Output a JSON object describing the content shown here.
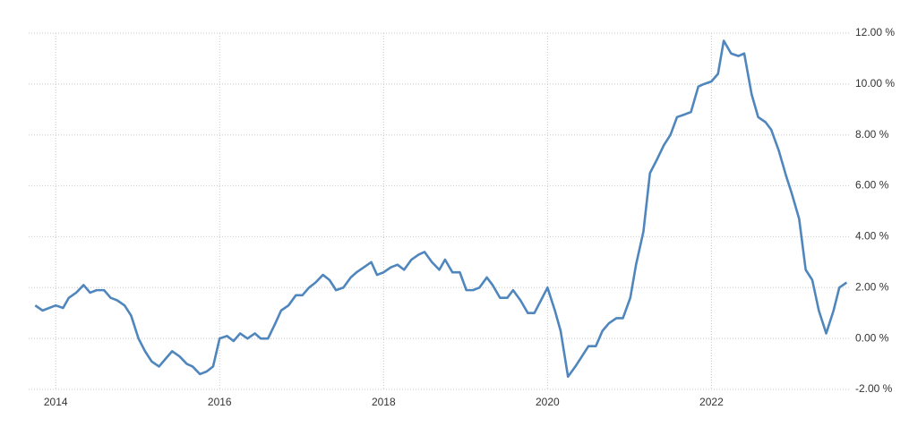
{
  "chart_data": {
    "type": "line",
    "x": [
      2013.75,
      2013.84,
      2014.0,
      2014.09,
      2014.16,
      2014.25,
      2014.34,
      2014.42,
      2014.5,
      2014.59,
      2014.67,
      2014.75,
      2014.84,
      2014.92,
      2015.01,
      2015.09,
      2015.17,
      2015.26,
      2015.34,
      2015.42,
      2015.51,
      2015.6,
      2015.67,
      2015.76,
      2015.84,
      2015.92,
      2016.0,
      2016.09,
      2016.17,
      2016.25,
      2016.34,
      2016.43,
      2016.5,
      2016.59,
      2016.68,
      2016.75,
      2016.84,
      2016.93,
      2017.01,
      2017.09,
      2017.17,
      2017.26,
      2017.34,
      2017.42,
      2017.51,
      2017.6,
      2017.67,
      2017.76,
      2017.85,
      2017.92,
      2018.0,
      2018.09,
      2018.17,
      2018.25,
      2018.34,
      2018.43,
      2018.5,
      2018.59,
      2018.68,
      2018.75,
      2018.84,
      2018.93,
      2019.01,
      2019.09,
      2019.17,
      2019.26,
      2019.33,
      2019.42,
      2019.51,
      2019.58,
      2019.67,
      2019.76,
      2019.84,
      2019.92,
      2020.0,
      2020.09,
      2020.16,
      2020.25,
      2020.34,
      2020.42,
      2020.5,
      2020.59,
      2020.67,
      2020.75,
      2020.84,
      2020.92,
      2021.01,
      2021.08,
      2021.17,
      2021.25,
      2021.33,
      2021.42,
      2021.5,
      2021.58,
      2021.67,
      2021.75,
      2021.84,
      2021.91,
      2022.0,
      2022.08,
      2022.15,
      2022.24,
      2022.33,
      2022.4,
      2022.49,
      2022.57,
      2022.66,
      2022.73,
      2022.82,
      2022.91,
      2022.98,
      2023.07,
      2023.15,
      2023.23,
      2023.31,
      2023.4,
      2023.49,
      2023.56,
      2023.65
    ],
    "series": [
      {
        "color": "#4f86bd",
        "values": [
          1.3,
          1.1,
          1.3,
          1.2,
          1.6,
          1.8,
          2.1,
          1.8,
          1.9,
          1.9,
          1.6,
          1.5,
          1.3,
          0.9,
          0.0,
          -0.5,
          -0.9,
          -1.1,
          -0.8,
          -0.5,
          -0.7,
          -1.0,
          -1.1,
          -1.4,
          -1.3,
          -1.1,
          0.0,
          0.1,
          -0.1,
          0.2,
          0.0,
          0.2,
          0.0,
          0.0,
          0.6,
          1.1,
          1.3,
          1.7,
          1.7,
          2.0,
          2.2,
          2.5,
          2.3,
          1.9,
          2.0,
          2.4,
          2.6,
          2.8,
          3.0,
          2.5,
          2.6,
          2.8,
          2.9,
          2.7,
          3.1,
          3.3,
          3.4,
          3.0,
          2.7,
          3.1,
          2.6,
          2.6,
          1.9,
          1.9,
          2.0,
          2.4,
          2.1,
          1.6,
          1.6,
          1.9,
          1.5,
          1.0,
          1.0,
          1.5,
          2.0,
          1.1,
          0.3,
          -1.5,
          -1.1,
          -0.7,
          -0.3,
          -0.3,
          0.3,
          0.6,
          0.8,
          0.8,
          1.6,
          2.9,
          4.2,
          6.5,
          7.0,
          7.6,
          8.0,
          8.7,
          8.8,
          8.9,
          9.9,
          10.0,
          10.1,
          10.4,
          11.7,
          11.2,
          11.1,
          11.2,
          9.6,
          8.7,
          8.5,
          8.2,
          7.4,
          6.4,
          5.7,
          4.7,
          2.7,
          2.3,
          1.1,
          0.2,
          1.1,
          2.0,
          2.2
        ]
      }
    ],
    "xlim": [
      2013.67,
      2023.7
    ],
    "xticks": [
      2014,
      2016,
      2018,
      2020,
      2022
    ],
    "ylim": [
      -2,
      12
    ],
    "yticks": [
      {
        "value": -2,
        "label": "-2.00 %"
      },
      {
        "value": 0,
        "label": "0.00 %"
      },
      {
        "value": 2,
        "label": "2.00 %"
      },
      {
        "value": 4,
        "label": "4.00 %"
      },
      {
        "value": 6,
        "label": "6.00 %"
      },
      {
        "value": 8,
        "label": "8.00 %"
      },
      {
        "value": 10,
        "label": "10.00 %"
      },
      {
        "value": 12,
        "label": "12.00 %"
      }
    ],
    "grid": true
  }
}
